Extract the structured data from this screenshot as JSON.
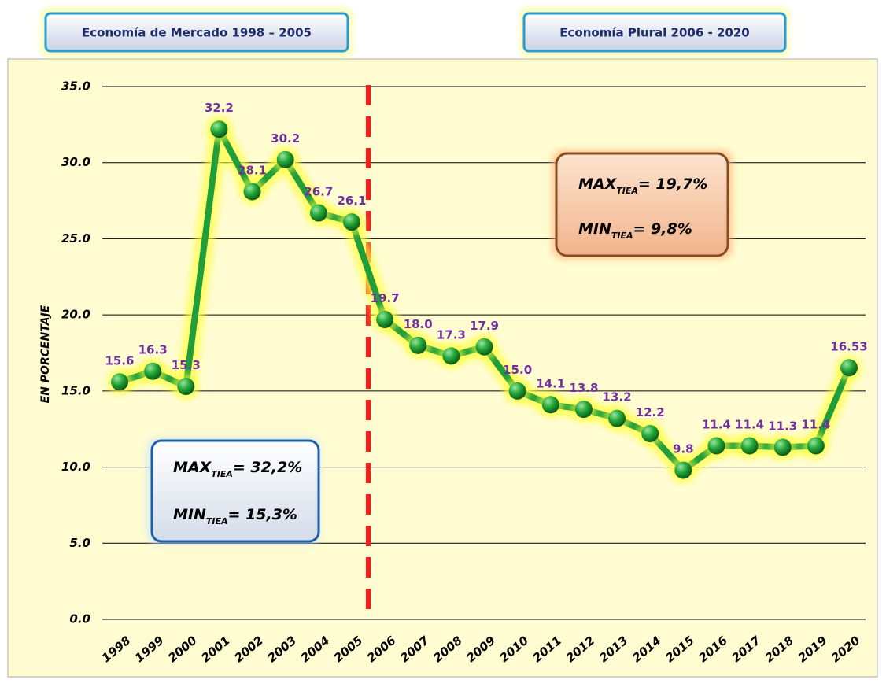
{
  "chart_data": {
    "type": "line",
    "headers": [
      "Economía de Mercado 1998 – 2005",
      "Economía Plural 2006 - 2020"
    ],
    "ylabel": "EN PORCENTAJE",
    "categories": [
      "1998",
      "1999",
      "2000",
      "2001",
      "2002",
      "2003",
      "2004",
      "2005",
      "2006",
      "2007",
      "2008",
      "2009",
      "2010",
      "2011",
      "2012",
      "2013",
      "2014",
      "2015",
      "2016",
      "2017",
      "2018",
      "2019",
      "2020"
    ],
    "values": [
      15.6,
      16.3,
      15.3,
      32.2,
      28.1,
      30.2,
      26.7,
      26.1,
      19.7,
      18.0,
      17.3,
      17.9,
      15.0,
      14.1,
      13.8,
      13.2,
      12.2,
      9.8,
      11.4,
      11.4,
      11.3,
      11.4,
      16.53
    ],
    "value_labels": [
      "15.6",
      "16.3",
      "15.3",
      "32.2",
      "28.1",
      "30.2",
      "26.7",
      "26.1",
      "19.7",
      "18.0",
      "17.3",
      "17.9",
      "15.0",
      "14.1",
      "13.8",
      "13.2",
      "12.2",
      "9.8",
      "11.4",
      "11.4",
      "11.3",
      "11.4",
      "16.53"
    ],
    "color": "#1f9e3a",
    "ylim": [
      0,
      35
    ],
    "yticks": [
      {
        "value": 0,
        "label": "0.0"
      },
      {
        "value": 5,
        "label": "5.0"
      },
      {
        "value": 10,
        "label": "10.0"
      },
      {
        "value": 15,
        "label": "15.0"
      },
      {
        "value": 20,
        "label": "20.0"
      },
      {
        "value": 25,
        "label": "25.0"
      },
      {
        "value": 30,
        "label": "30.0"
      },
      {
        "value": 35,
        "label": "35.0"
      }
    ],
    "grid": true,
    "annotations": [
      {
        "max": {
          "text": "MAX",
          "sub": "TIEA",
          "rest": "= 32,2%"
        },
        "min": {
          "text": "MIN",
          "sub": "TIEA",
          "rest": "= 15,3%"
        }
      },
      {
        "max": {
          "text": "MAX",
          "sub": "TIEA",
          "rest": "= 19,7%"
        },
        "min": {
          "text": "MIN",
          "sub": "TIEA",
          "rest": "= 9,8%"
        }
      }
    ]
  }
}
